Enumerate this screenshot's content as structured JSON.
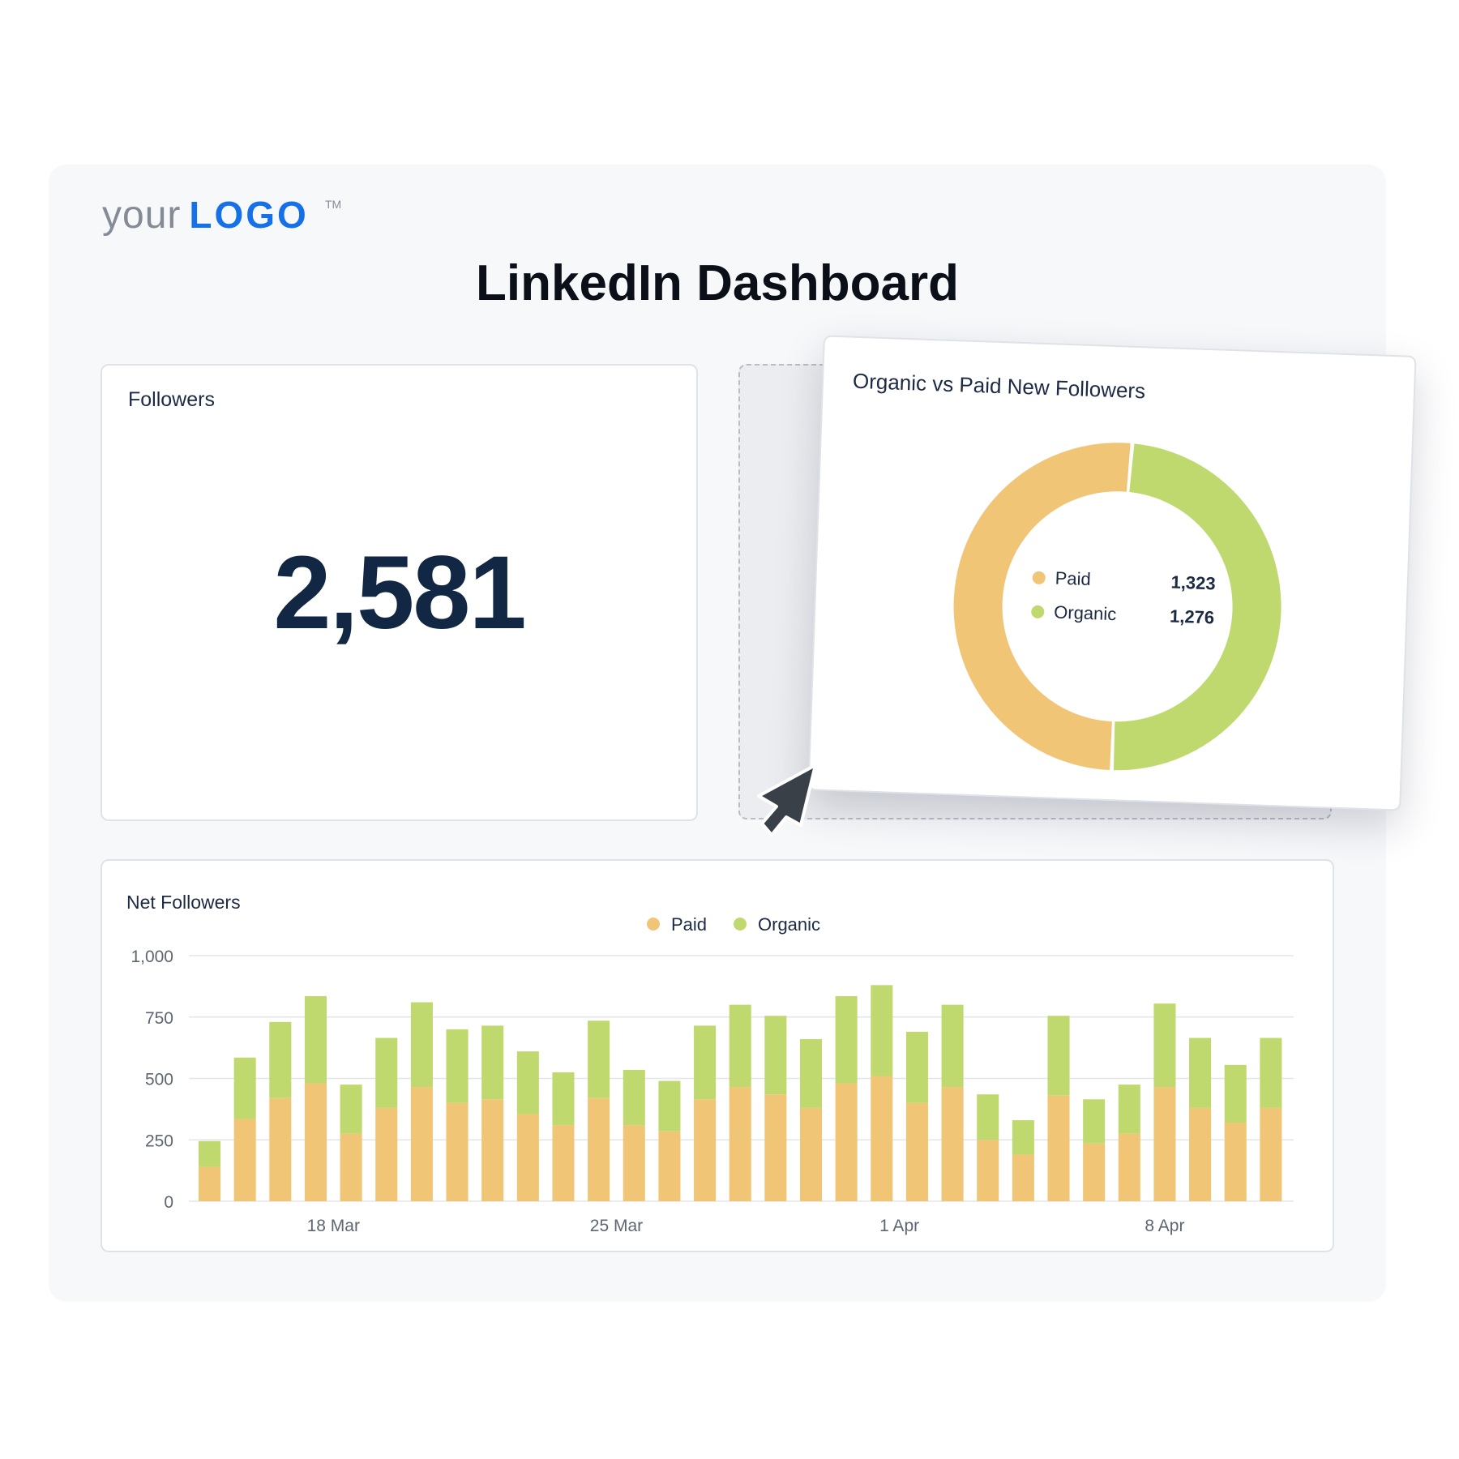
{
  "logo": {
    "your": "your",
    "logo": "LOGO",
    "tm": "TM"
  },
  "title": "LinkedIn Dashboard",
  "followers": {
    "title": "Followers",
    "value": "2,581"
  },
  "donut": {
    "title": "Organic vs Paid New Followers",
    "items": [
      {
        "label": "Paid",
        "value": "1,323",
        "color": "#f0c576"
      },
      {
        "label": "Organic",
        "value": "1,276",
        "color": "#bfd96f"
      }
    ]
  },
  "net": {
    "title": "Net Followers"
  },
  "colors": {
    "paid": "#f0c576",
    "organic": "#bfd96f",
    "grid": "#e3e5e9",
    "axis_text": "#5e6673"
  },
  "chart_data": [
    {
      "type": "pie",
      "title": "Organic vs Paid New Followers",
      "categories": [
        "Paid",
        "Organic"
      ],
      "values": [
        1323,
        1276
      ]
    },
    {
      "type": "bar",
      "title": "Net Followers",
      "stacked": true,
      "x_tick_labels": [
        "18 Mar",
        "25 Mar",
        "1 Apr",
        "8 Apr"
      ],
      "x_tick_bar_index": [
        3.5,
        11.5,
        19.5,
        27
      ],
      "ylim": [
        0,
        1000
      ],
      "y_ticks": [
        0,
        250,
        500,
        750,
        1000
      ],
      "y_tick_labels": [
        "0",
        "250",
        "500",
        "750",
        "1,000"
      ],
      "legend": "top-center",
      "series": [
        {
          "name": "Paid",
          "color": "#f0c576",
          "values": [
            140,
            335,
            420,
            480,
            275,
            380,
            465,
            400,
            415,
            355,
            310,
            420,
            310,
            285,
            415,
            465,
            435,
            380,
            480,
            510,
            400,
            465,
            250,
            190,
            430,
            235,
            275,
            465,
            380,
            320,
            380
          ]
        },
        {
          "name": "Organic",
          "color": "#bfd96f",
          "values": [
            105,
            250,
            310,
            355,
            200,
            285,
            345,
            300,
            300,
            255,
            215,
            315,
            225,
            205,
            300,
            335,
            320,
            280,
            355,
            370,
            290,
            335,
            185,
            140,
            325,
            180,
            200,
            340,
            285,
            235,
            285
          ]
        }
      ]
    }
  ]
}
